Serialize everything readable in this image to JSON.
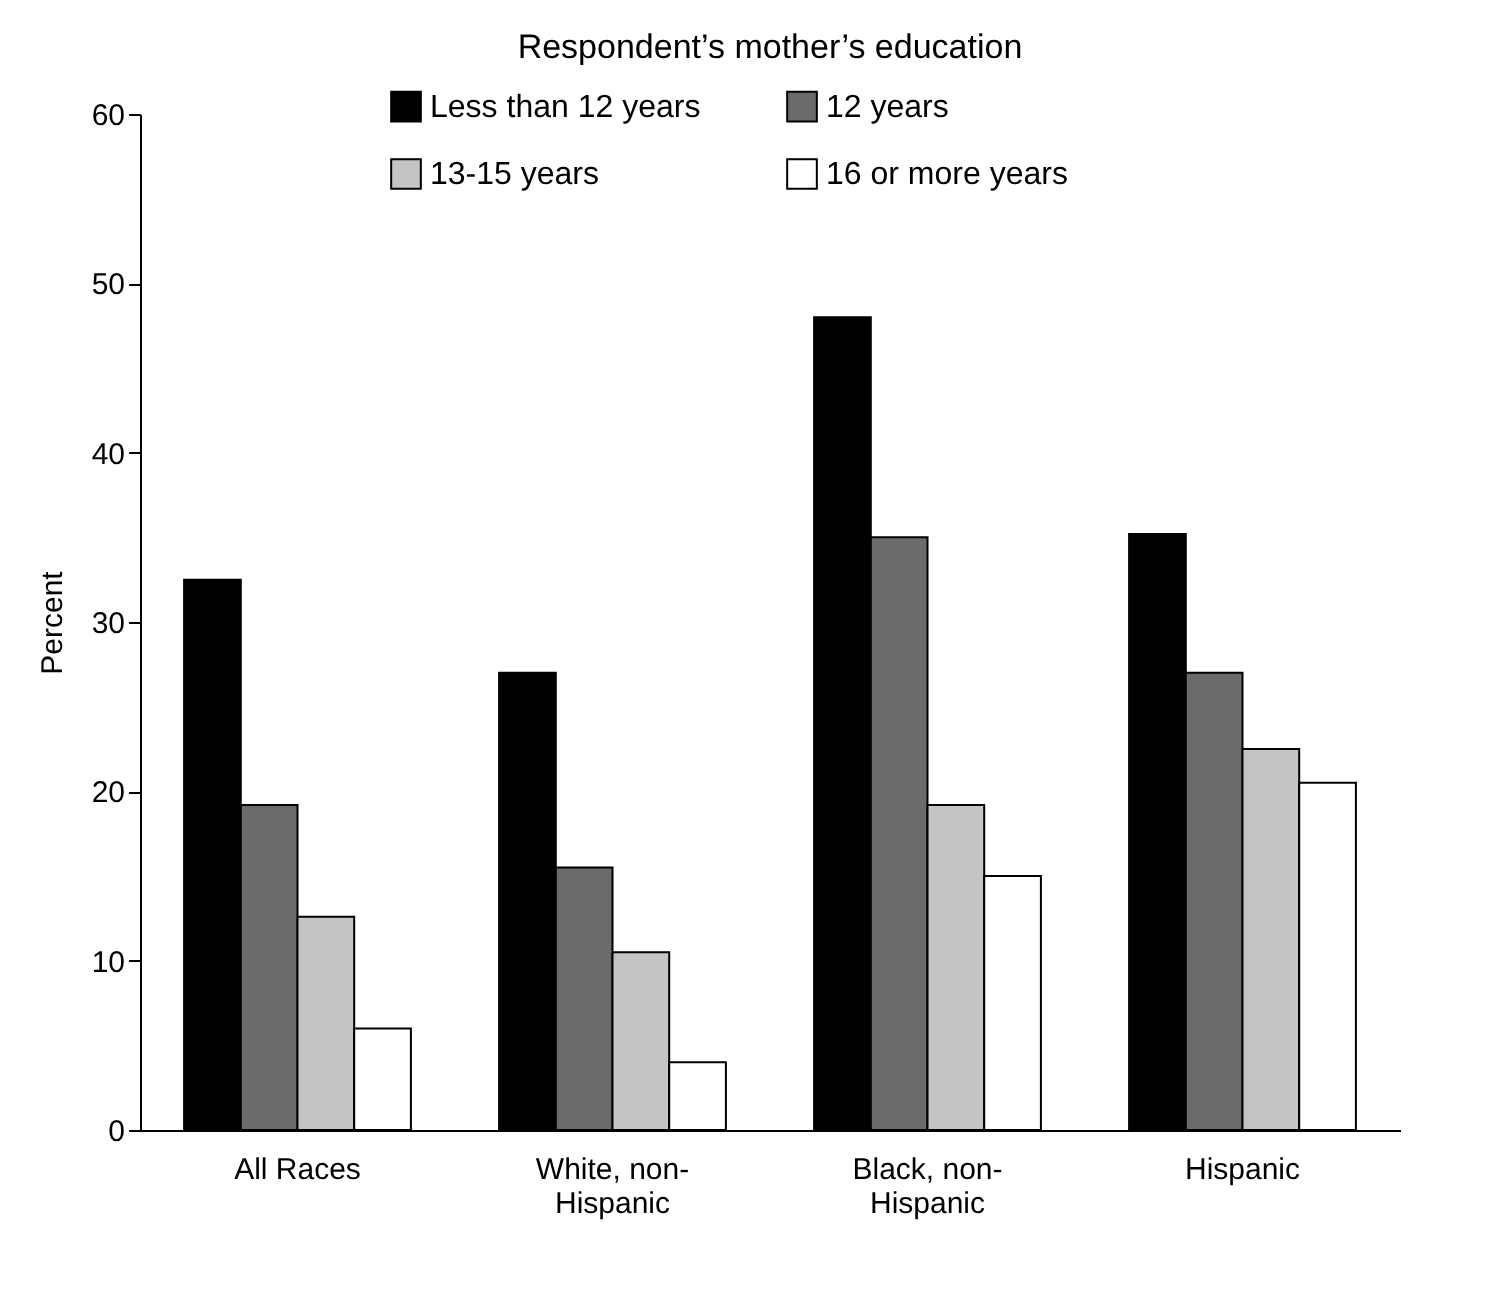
{
  "chart_data": {
    "type": "bar",
    "title": "Respondent’s mother’s education",
    "ylabel": "Percent",
    "categories": [
      "All Races",
      "White, non-Hispanic",
      "Black, non-Hispanic",
      "Hispanic"
    ],
    "series": [
      {
        "name": "Less than 12 years",
        "color": "#000000",
        "values": [
          32.5,
          27,
          48,
          35.2
        ]
      },
      {
        "name": "12 years",
        "color": "#6b6b6b",
        "values": [
          19.2,
          15.5,
          35,
          27
        ]
      },
      {
        "name": "13-15 years",
        "color": "#c4c4c4",
        "values": [
          12.6,
          10.5,
          19.2,
          22.5
        ]
      },
      {
        "name": "16 or more years",
        "color": "#ffffff",
        "values": [
          6,
          4,
          15,
          20.5
        ]
      }
    ],
    "ylim": [
      0,
      60
    ],
    "yticks": [
      0,
      10,
      20,
      30,
      40,
      50,
      60
    ],
    "grid": false,
    "legend": "top"
  }
}
